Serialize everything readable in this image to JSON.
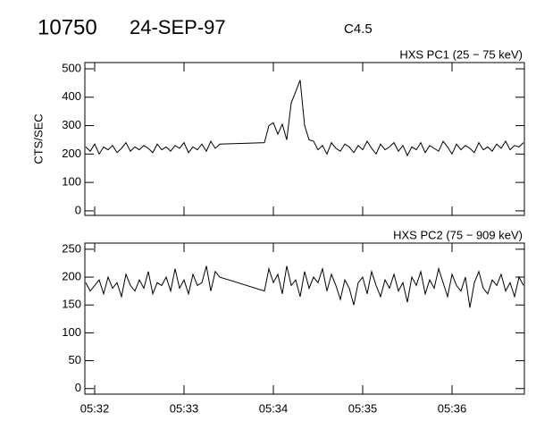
{
  "header": {
    "event": "10750",
    "date": "24-SEP-97",
    "class": "C4.5"
  },
  "chart_data": [
    {
      "type": "line",
      "title": "HXS PC1 (25 − 75 keV)",
      "y_label": "CTS/SEC",
      "color": "#000000",
      "xlim": [
        31.89,
        36.81
      ],
      "xticks": [
        32,
        33,
        34,
        35,
        36
      ],
      "ylim": [
        -16,
        522
      ],
      "yticks": [
        0,
        100,
        200,
        300,
        400,
        500
      ],
      "x": [
        31.9,
        31.95,
        32,
        32.05,
        32.1,
        32.15,
        32.2,
        32.25,
        32.3,
        32.35,
        32.4,
        32.45,
        32.5,
        32.55,
        32.6,
        32.65,
        32.7,
        32.75,
        32.8,
        32.85,
        32.9,
        32.95,
        33,
        33.05,
        33.1,
        33.15,
        33.2,
        33.25,
        33.3,
        33.35,
        33.4,
        33.9,
        33.95,
        34,
        34.05,
        34.1,
        34.15,
        34.2,
        34.25,
        34.3,
        34.35,
        34.4,
        34.45,
        34.5,
        34.55,
        34.6,
        34.65,
        34.7,
        34.75,
        34.8,
        34.85,
        34.9,
        34.95,
        35,
        35.05,
        35.1,
        35.15,
        35.2,
        35.25,
        35.3,
        35.35,
        35.4,
        35.45,
        35.5,
        35.55,
        35.6,
        35.65,
        35.7,
        35.75,
        35.8,
        35.85,
        35.9,
        35.95,
        36,
        36.05,
        36.1,
        36.15,
        36.2,
        36.25,
        36.3,
        36.35,
        36.4,
        36.45,
        36.5,
        36.55,
        36.6,
        36.65,
        36.7,
        36.75,
        36.8
      ],
      "values": [
        225,
        210,
        235,
        200,
        225,
        215,
        230,
        205,
        220,
        240,
        210,
        225,
        215,
        230,
        220,
        205,
        235,
        215,
        225,
        210,
        230,
        220,
        240,
        205,
        225,
        215,
        235,
        210,
        245,
        220,
        235,
        240,
        300,
        310,
        270,
        305,
        250,
        380,
        420,
        460,
        300,
        250,
        245,
        215,
        230,
        200,
        240,
        220,
        210,
        235,
        225,
        205,
        230,
        215,
        245,
        220,
        200,
        235,
        215,
        225,
        240,
        210,
        230,
        195,
        225,
        215,
        240,
        205,
        230,
        220,
        210,
        245,
        225,
        200,
        235,
        215,
        230,
        220,
        205,
        240,
        215,
        225,
        210,
        235,
        220,
        245,
        215,
        230,
        225,
        240
      ]
    },
    {
      "type": "line",
      "title": "HXS PC2 (75 − 909 keV)",
      "color": "#000000",
      "xlim": [
        31.89,
        36.81
      ],
      "xticks": [
        {
          "value": 32,
          "label": "05:32"
        },
        {
          "value": 33,
          "label": "05:33"
        },
        {
          "value": 34,
          "label": "05:34"
        },
        {
          "value": 35,
          "label": "05:35"
        },
        {
          "value": 36,
          "label": "05:36"
        }
      ],
      "ylim": [
        -10,
        261
      ],
      "yticks": [
        0,
        50,
        100,
        150,
        200,
        250
      ],
      "x": [
        31.9,
        31.95,
        32,
        32.05,
        32.1,
        32.15,
        32.2,
        32.25,
        32.3,
        32.35,
        32.4,
        32.45,
        32.5,
        32.55,
        32.6,
        32.65,
        32.7,
        32.75,
        32.8,
        32.85,
        32.9,
        32.95,
        33,
        33.05,
        33.1,
        33.15,
        33.2,
        33.25,
        33.3,
        33.35,
        33.4,
        33.9,
        33.95,
        34,
        34.05,
        34.1,
        34.15,
        34.2,
        34.25,
        34.3,
        34.35,
        34.4,
        34.45,
        34.5,
        34.55,
        34.6,
        34.65,
        34.7,
        34.75,
        34.8,
        34.85,
        34.9,
        34.95,
        35,
        35.05,
        35.1,
        35.15,
        35.2,
        35.25,
        35.3,
        35.35,
        35.4,
        35.45,
        35.5,
        35.55,
        35.6,
        35.65,
        35.7,
        35.75,
        35.8,
        35.85,
        35.9,
        35.95,
        36,
        36.05,
        36.1,
        36.15,
        36.2,
        36.25,
        36.3,
        36.35,
        36.4,
        36.45,
        36.5,
        36.55,
        36.6,
        36.65,
        36.7,
        36.75,
        36.8
      ],
      "values": [
        190,
        175,
        185,
        195,
        170,
        200,
        180,
        190,
        165,
        205,
        185,
        175,
        195,
        180,
        210,
        170,
        190,
        185,
        200,
        175,
        215,
        180,
        195,
        170,
        205,
        185,
        190,
        220,
        175,
        210,
        200,
        175,
        215,
        190,
        205,
        170,
        220,
        185,
        195,
        165,
        210,
        180,
        200,
        190,
        215,
        175,
        205,
        185,
        160,
        195,
        180,
        150,
        190,
        200,
        170,
        210,
        185,
        165,
        195,
        180,
        205,
        175,
        190,
        155,
        200,
        185,
        210,
        170,
        195,
        180,
        215,
        190,
        165,
        205,
        185,
        175,
        200,
        145,
        190,
        210,
        180,
        170,
        195,
        185,
        205,
        175,
        190,
        165,
        200,
        185
      ]
    }
  ]
}
